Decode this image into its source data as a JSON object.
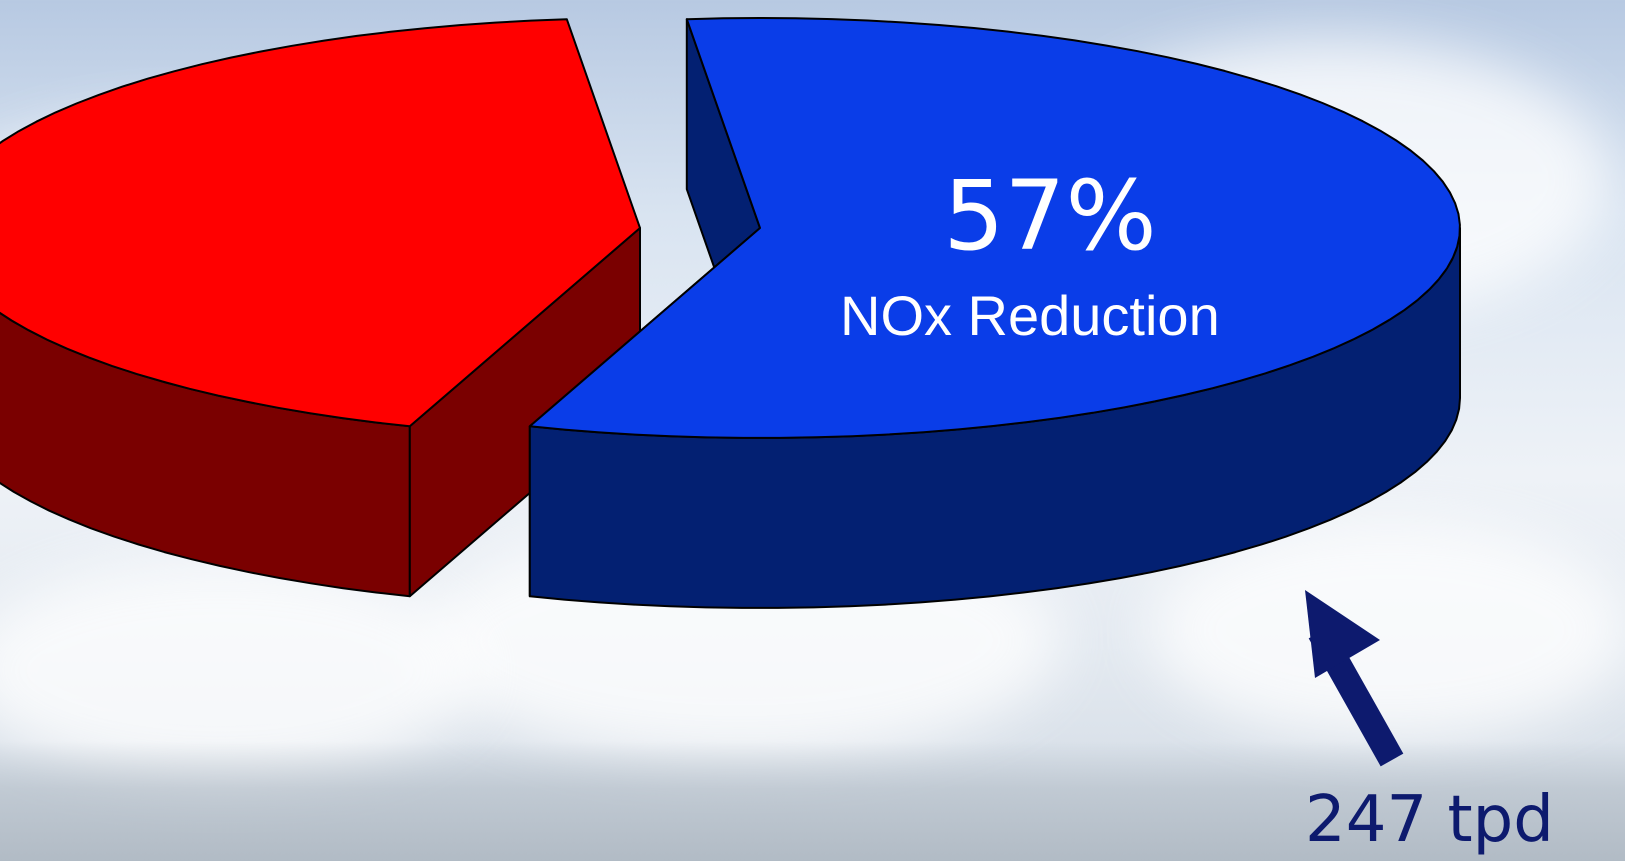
{
  "chart_data": {
    "type": "pie",
    "style": "3d-exploded",
    "slices": [
      {
        "label": "",
        "value": 43,
        "color": "#ff0000",
        "side_color": "#7a0000"
      },
      {
        "label": "NOx Reduction",
        "value": 57,
        "color": "#0a3de8",
        "side_color": "#032072"
      }
    ],
    "annotations": {
      "percent_label": "57%",
      "slice_label": "NOx Reduction",
      "callout": "247 tpd"
    }
  },
  "colors": {
    "red_top": "#ff0000",
    "red_side": "#7a0000",
    "blue_top": "#0a3de8",
    "blue_side": "#032072",
    "arrow": "#0d1a6e"
  }
}
